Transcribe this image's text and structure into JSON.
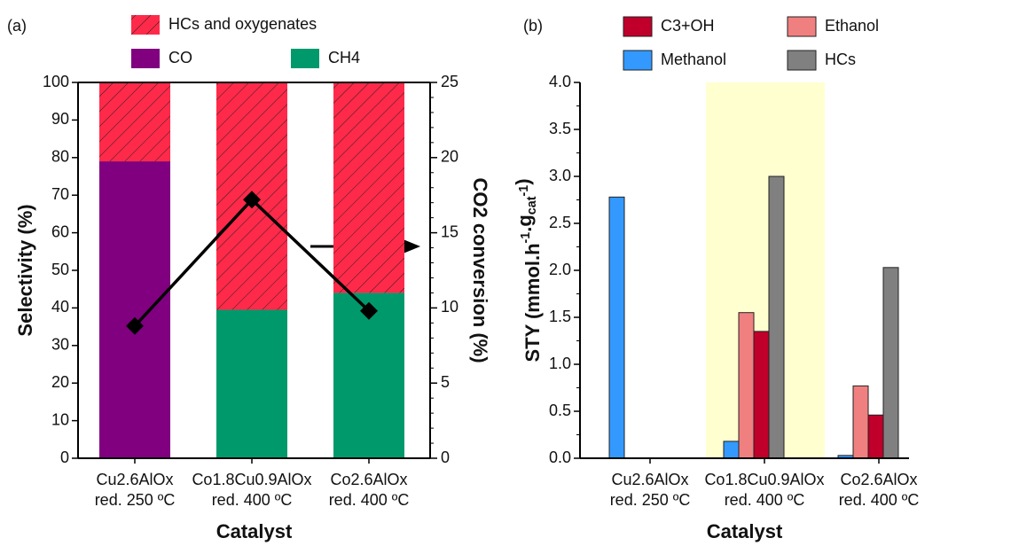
{
  "chart_data": [
    {
      "type": "stacked_bar",
      "panel_label": "(a)",
      "categories": [
        "Cu2.6AlOx",
        "Co1.8Cu0.9AlOx",
        "Co2.6AlOx"
      ],
      "category_notes": [
        "red. 250 ºC",
        "red. 400 ºC",
        "red. 400 ºC"
      ],
      "xlabel": "Catalyst",
      "ylabel": "Selectivity (%)",
      "y2label": "CO2 conversion (%)",
      "ylim": [
        0,
        100
      ],
      "yticks": [
        0,
        10,
        20,
        30,
        40,
        50,
        60,
        70,
        80,
        90,
        100
      ],
      "y2lim": [
        0,
        25
      ],
      "y2ticks": [
        0,
        5,
        10,
        15,
        20,
        25
      ],
      "series": [
        {
          "name": "CO",
          "color": "#800080",
          "values": [
            79,
            0,
            0
          ]
        },
        {
          "name": "CH4",
          "color": "#00996b",
          "values": [
            0,
            39.5,
            44
          ]
        },
        {
          "name": "HCs and oxygenates",
          "color": "#ff2a4a",
          "pattern": "hatch",
          "values": [
            21,
            60.5,
            56
          ]
        },
        {
          "type": "line",
          "axis": "y2",
          "color": "#000000",
          "values": [
            8.8,
            17.2,
            9.8
          ]
        }
      ]
    },
    {
      "type": "grouped_bar",
      "panel_label": "(b)",
      "categories": [
        "Cu2.6AlOx",
        "Co1.8Cu0.9AlOx",
        "Co2.6AlOx"
      ],
      "category_notes": [
        "red. 250 ºC",
        "red. 400 ºC",
        "red. 400 ºC"
      ],
      "xlabel": "Catalyst",
      "ylabel": "STY (mmol.h-1.gcat-1)",
      "ylim": [
        0,
        4
      ],
      "yticks": [
        {
          "value": 0,
          "label": "0.0"
        },
        0.5,
        {
          "value": 1,
          "label": "1.0"
        },
        1.5,
        {
          "value": 2,
          "label": "2.0"
        },
        2.5,
        {
          "value": 3,
          "label": "3.0"
        },
        3.5,
        {
          "value": 4,
          "label": "4.0"
        }
      ],
      "series": [
        {
          "name": "Methanol",
          "color": "#3399ff",
          "values": [
            2.78,
            0.18,
            0.03
          ]
        },
        {
          "name": "Ethanol",
          "color": "#f08080",
          "values": [
            0,
            1.55,
            0.77
          ]
        },
        {
          "name": "C3+OH",
          "color": "#c0002a",
          "values": [
            0,
            1.35,
            0.46
          ]
        },
        {
          "name": "HCs",
          "color": "#808080",
          "values": [
            0,
            3.0,
            2.03
          ]
        }
      ]
    }
  ]
}
